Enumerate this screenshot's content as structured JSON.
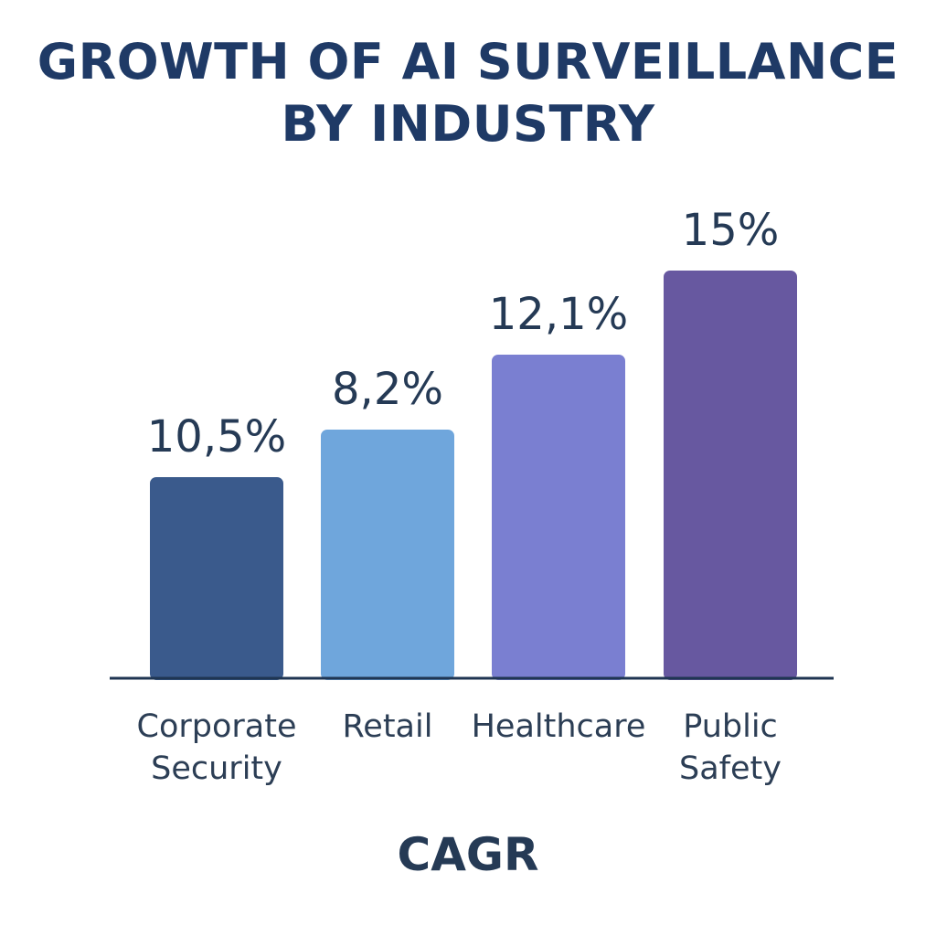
{
  "chart_data": {
    "type": "bar",
    "title_lines": [
      "GROWTH OF AI SURVEILLANCE",
      "BY INDUSTRY"
    ],
    "xlabel": "CAGR",
    "ylabel": "",
    "categories": [
      [
        "Corporate",
        "Security"
      ],
      [
        "Retail"
      ],
      [
        "Healthcare"
      ],
      [
        "Public",
        "Safety"
      ]
    ],
    "values": [
      10.5,
      8.2,
      12.1,
      15
    ],
    "value_labels": [
      "10,5%",
      "8,2%",
      "12,1%",
      "15%"
    ],
    "colors": [
      "#3a5a8c",
      "#6fa6dc",
      "#7a7fd1",
      "#6758a0"
    ]
  }
}
